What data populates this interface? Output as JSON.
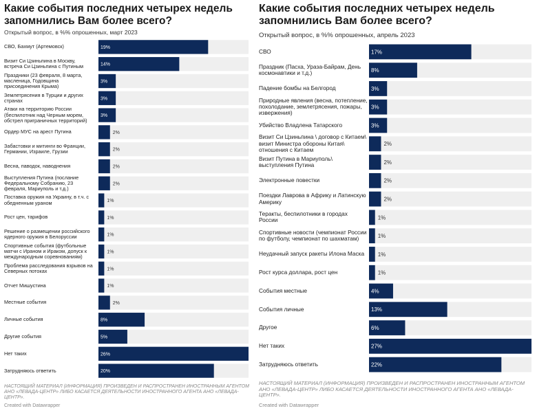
{
  "left": {
    "title": "Какие события последних четырех недель запомнились Вам более всего?",
    "subtitle": "Открытый вопрос, в %% опрошенных, март 2023",
    "footnote": "НАСТОЯЩИЙ МАТЕРИАЛ (ИНФОРМАЦИЯ) ПРОИЗВЕДЕН И РАСПРОСТРАНЕН ИНОСТРАННЫМ АГЕНТОМ АНО «ЛЕВАДА-ЦЕНТР» ЛИБО КАСАЕТСЯ ДЕЯТЕЛЬНОСТИ ИНОСТРАННОГО АГЕНТА АНО «ЛЕВАДА-ЦЕНТР».",
    "credit": "Created with Datawrapper"
  },
  "right": {
    "title": "Какие события последних четырех недель запомнились Вам более всего?",
    "subtitle": "Открытый вопрос, в %% опрошенных, апрель 2023",
    "footnote": "НАСТОЯЩИЙ МАТЕРИАЛ (ИНФОРМАЦИЯ) ПРОИЗВЕДЕН И РАСПРОСТРАНЕН ИНОСТРАННЫМ АГЕНТОМ АНО «ЛЕВАДА-ЦЕНТР» ЛИБО КАСАЕТСЯ ДЕЯТЕЛЬНОСТИ ИНОСТРАННОГО АГЕНТА АНО «ЛЕВАДА-ЦЕНТР».",
    "credit": "Created with Datawrapper"
  },
  "colors": {
    "bar": "#0e2a5a",
    "track": "#efefef",
    "label_inside": "#ffffff",
    "label_outside": "#333333"
  },
  "chart_data": [
    {
      "type": "bar",
      "orientation": "horizontal",
      "title": "Какие события последних четырех недель запомнились Вам более всего?",
      "subtitle": "Открытый вопрос, в %% опрошенных, март 2023",
      "value_suffix": "%",
      "xlim": [
        0,
        26
      ],
      "categories": [
        "СВО, Бахмут (Артемовск)",
        "Визит Си Цзиньпина в Москву, встреча Си Цзиньпина с Путиным",
        "Праздники (23 февраля, 8 марта, масленица, Годовщина присоединения Крыма)",
        "Землетрясения в Турции и других странах",
        "Атаки на территорию России (беспилотник над Черным морем, обстрел приграничных территорий)",
        "Ордер МУС на арест Путина",
        "Забастовки и митинги во Франции, Германии, Израиле, Грузии",
        "Весна, паводок, наводнения",
        "Выступления Путина (послание Федеральному Собранию, 23 февраля, Мариуполь и т.д.)",
        "Поставка оружия на Украину, в т.ч. с обедненным ураном",
        "Рост цен, тарифов",
        "Решение о размещении российского ядерного оружия в Белоруссии",
        "Спортивные события (футбольные матчи с Ираном и Ираком, допуск к международным соревнованиям)",
        "Проблема расследования взрывов на Северных потоках",
        "Отчет Мишустина",
        "Местные события",
        "Личные события",
        "Другие события",
        "Нет таких",
        "Затрудняюсь ответить"
      ],
      "values": [
        19,
        14,
        3,
        3,
        3,
        2,
        2,
        2,
        2,
        1,
        1,
        1,
        1,
        1,
        1,
        2,
        8,
        5,
        26,
        20
      ]
    },
    {
      "type": "bar",
      "orientation": "horizontal",
      "title": "Какие события последних четырех недель запомнились Вам более всего?",
      "subtitle": "Открытый вопрос, в %% опрошенных, апрель 2023",
      "value_suffix": "%",
      "xlim": [
        0,
        27
      ],
      "categories": [
        "СВО",
        "Праздник (Пасха, Ураза-Байрам, День космонавтики и т.д.)",
        "Падение бомбы на Белгород",
        "Природные явления (весна, потепление, похолодание, землетрясения, пожары, извержения)",
        "Убийство Владлена Татарского",
        "Визит Си Цзиньпина \\ договор с Китаем\\ визит Министра обороны Китая\\ отношения с Китаем",
        "Визит Путина в Мариуполь\\ выступления Путина",
        "Электронные повестки",
        "Поездки Лаврова в Африку и Латинскую Америку",
        "Теракты, беспилотники в городах России",
        "Спортивные новости (чемпионат России по футболу, чемпионат по шахматам)",
        "Неудачный запуск ракеты Илона Маска",
        "Рост курса доллара, рост цен",
        "События местные",
        "События личные",
        "Другое",
        "Нет таких",
        "Затрудняюсь ответить"
      ],
      "values": [
        17,
        8,
        3,
        3,
        3,
        2,
        2,
        2,
        2,
        1,
        1,
        1,
        1,
        4,
        13,
        6,
        27,
        22
      ]
    }
  ]
}
